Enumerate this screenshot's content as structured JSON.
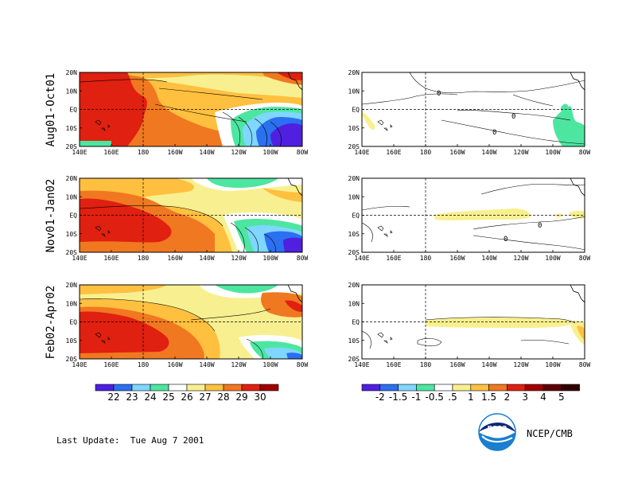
{
  "rows": [
    {
      "label": "Aug01-Oct01"
    },
    {
      "label": "Nov01-Jan02"
    },
    {
      "label": "Feb02-Apr02"
    }
  ],
  "lat_ticks": [
    "20N",
    "10N",
    "EQ",
    "10S",
    "20S"
  ],
  "lon_ticks": [
    "140E",
    "160E",
    "180",
    "160W",
    "140W",
    "120W",
    "100W",
    "80W"
  ],
  "left_colorbar": {
    "labels": [
      "22",
      "23",
      "24",
      "25",
      "26",
      "27",
      "28",
      "29",
      "30"
    ],
    "colors": [
      "#5020e0",
      "#2b70f0",
      "#7fd6ff",
      "#4de6a0",
      "#ffffff",
      "#f8f090",
      "#ffc040",
      "#f07820",
      "#e02010",
      "#a00000"
    ]
  },
  "right_colorbar": {
    "labels": [
      "-2",
      "-1.5",
      "-1",
      "-0.5",
      ".5",
      "1",
      "1.5",
      "2",
      "3",
      "4",
      "5"
    ],
    "colors": [
      "#5020e0",
      "#2b70f0",
      "#7fd6ff",
      "#4de6a0",
      "#ffffff",
      "#f8f090",
      "#ffc040",
      "#f07820",
      "#e02010",
      "#a00000",
      "#600000",
      "#300000"
    ]
  },
  "contour_labels": [
    "0"
  ],
  "logo_text": "noaa",
  "credit": "NCEP/CMB",
  "last_update": "Last Update:  Tue Aug 7 2001"
}
